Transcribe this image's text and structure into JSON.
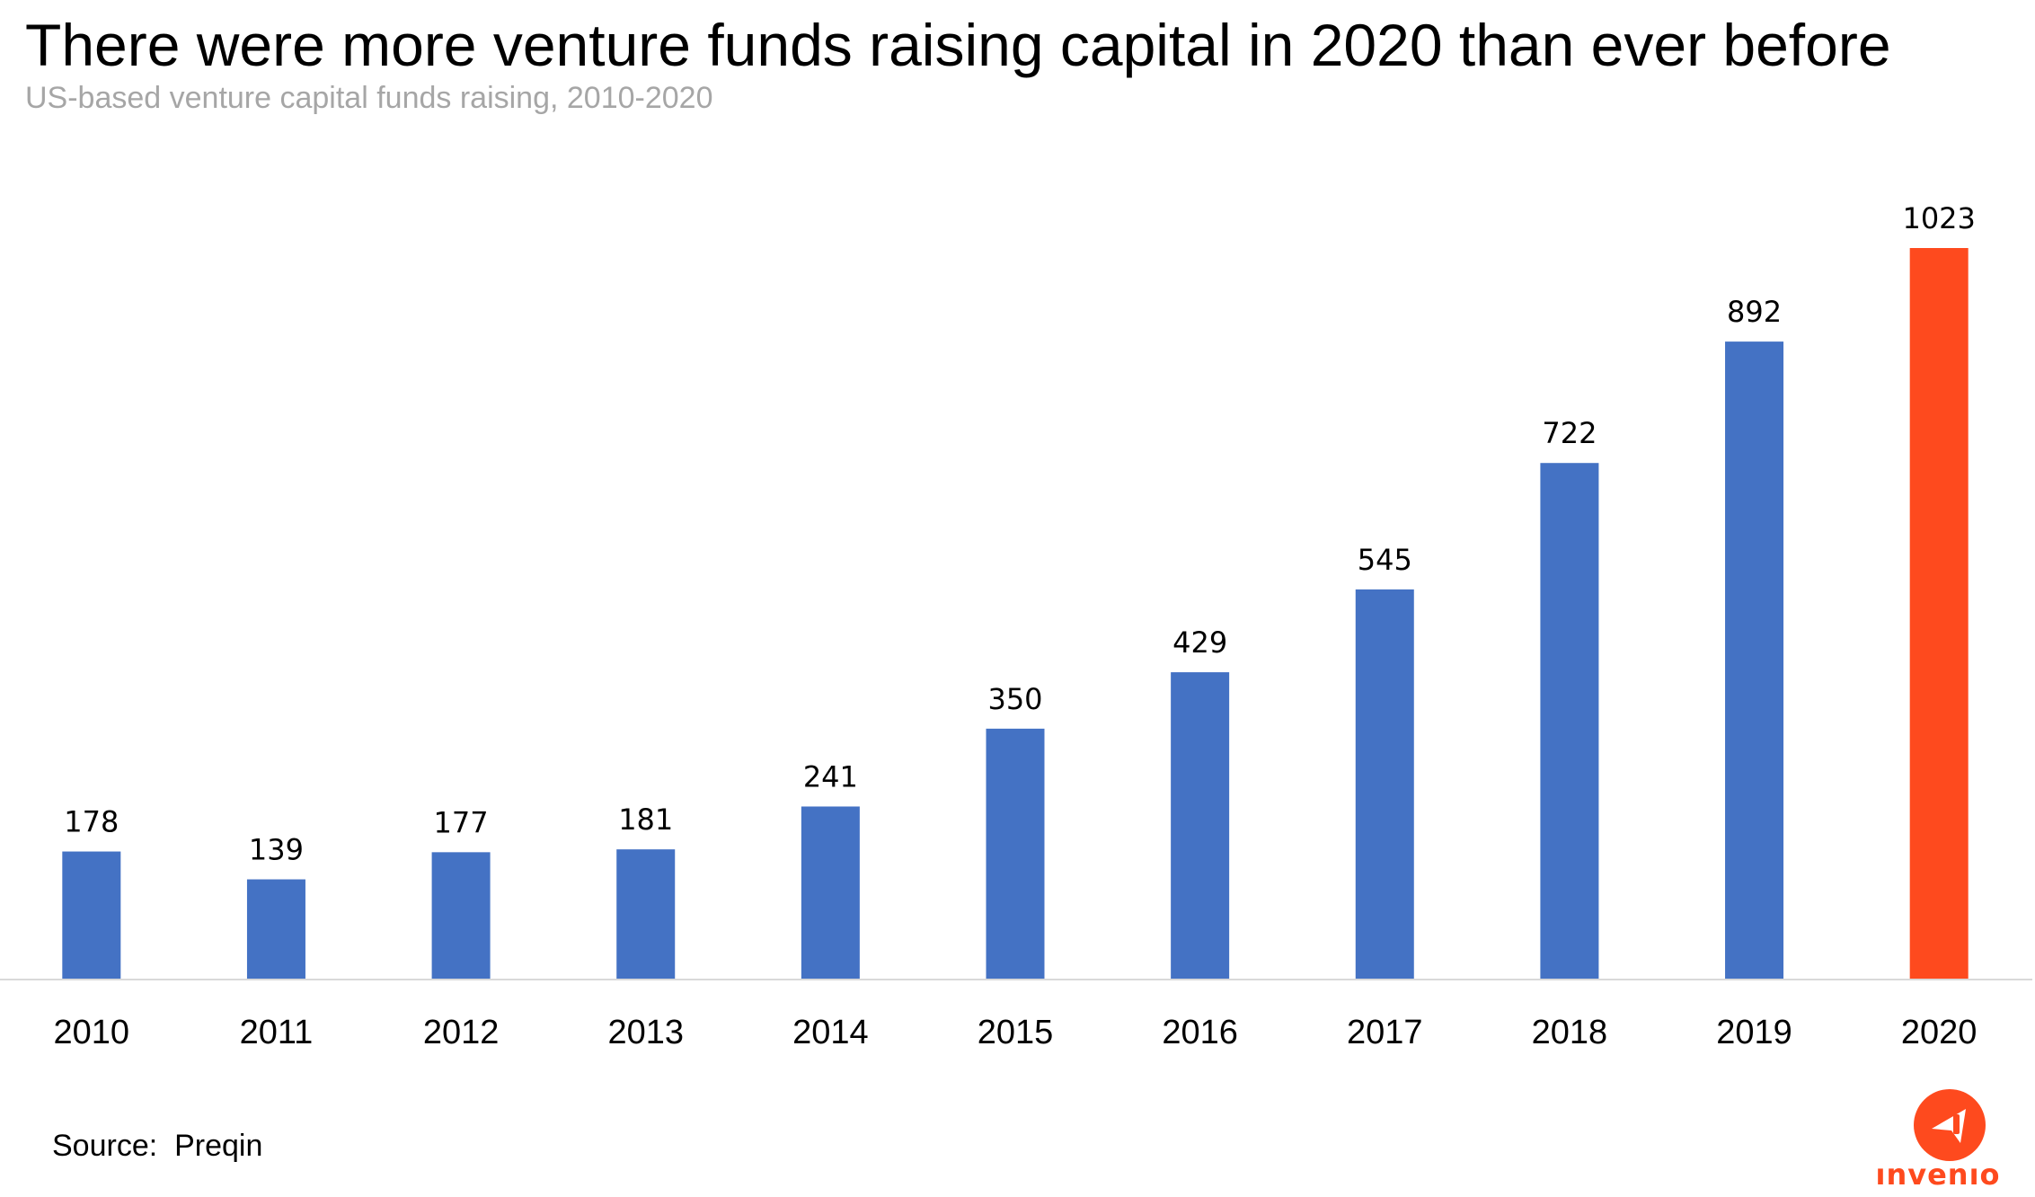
{
  "header": {
    "title": "There were more venture funds raising capital in 2020 than ever before",
    "subtitle": "US-based venture capital funds raising, 2010-2020"
  },
  "footer": {
    "source": "Source:  Preqin"
  },
  "logo": {
    "wordmark": "ınvenıo",
    "icon": "invenio-logo-icon",
    "color": "#fe4a1e"
  },
  "chart_data": {
    "type": "bar",
    "title": "There were more venture funds raising capital in 2020 than ever before",
    "subtitle": "US-based venture capital funds raising, 2010-2020",
    "xlabel": "",
    "ylabel": "",
    "categories": [
      "2010",
      "2011",
      "2012",
      "2013",
      "2014",
      "2015",
      "2016",
      "2017",
      "2018",
      "2019",
      "2020"
    ],
    "values": [
      178,
      139,
      177,
      181,
      241,
      350,
      429,
      545,
      722,
      892,
      1023
    ],
    "ylim": [
      0,
      1023
    ],
    "grid": false,
    "legend": "none",
    "data_labels": true,
    "colors": {
      "default": "#4472c4",
      "highlight": "#fe4a1e",
      "highlight_category": "2020",
      "axis": "#d9d9d9"
    }
  }
}
